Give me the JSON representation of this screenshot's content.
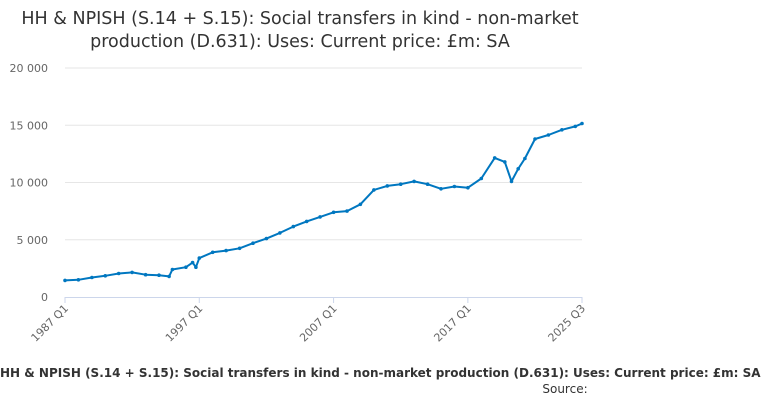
{
  "chart_data": {
    "type": "line",
    "title": "HH & NPISH (S.14 + S.15): Social transfers in kind - non-market production (D.631): Uses: Current price: £m: SA",
    "xlabel": "",
    "ylabel": "",
    "ylim": [
      0,
      20000
    ],
    "y_ticks": [
      "0",
      "5 000",
      "10 000",
      "15 000",
      "20 000"
    ],
    "y_tick_values": [
      0,
      5000,
      10000,
      15000,
      20000
    ],
    "x_ticks": [
      "1987 Q1",
      "1997 Q1",
      "2007 Q1",
      "2017 Q1",
      "2025 Q3"
    ],
    "x_range": [
      "1987 Q1",
      "2025 Q3"
    ],
    "grid": "horizontal",
    "legend": "bottom",
    "color": "#0077c0",
    "series": [
      {
        "name": "HH & NPISH (S.14 + S.15): Social transfers in kind - non-market production (D.631): Uses: Current price: £m: SA",
        "points": [
          [
            "1987 Q1",
            1450
          ],
          [
            "1988 Q1",
            1500
          ],
          [
            "1989 Q1",
            1700
          ],
          [
            "1990 Q1",
            1850
          ],
          [
            "1991 Q1",
            2050
          ],
          [
            "1992 Q1",
            2150
          ],
          [
            "1993 Q1",
            1950
          ],
          [
            "1994 Q1",
            1900
          ],
          [
            "1994 Q4",
            1800
          ],
          [
            "1995 Q1",
            2400
          ],
          [
            "1996 Q1",
            2600
          ],
          [
            "1996 Q3",
            3000
          ],
          [
            "1996 Q4",
            2600
          ],
          [
            "1997 Q1",
            3400
          ],
          [
            "1998 Q1",
            3900
          ],
          [
            "1999 Q1",
            4050
          ],
          [
            "2000 Q1",
            4250
          ],
          [
            "2001 Q1",
            4700
          ],
          [
            "2002 Q1",
            5100
          ],
          [
            "2003 Q1",
            5600
          ],
          [
            "2004 Q1",
            6150
          ],
          [
            "2005 Q1",
            6600
          ],
          [
            "2006 Q1",
            7000
          ],
          [
            "2007 Q1",
            7400
          ],
          [
            "2008 Q1",
            7500
          ],
          [
            "2009 Q1",
            8100
          ],
          [
            "2010 Q1",
            9350
          ],
          [
            "2011 Q1",
            9700
          ],
          [
            "2012 Q1",
            9850
          ],
          [
            "2013 Q1",
            10100
          ],
          [
            "2014 Q1",
            9850
          ],
          [
            "2015 Q1",
            9450
          ],
          [
            "2016 Q1",
            9650
          ],
          [
            "2017 Q1",
            9550
          ],
          [
            "2018 Q1",
            10350
          ],
          [
            "2019 Q1",
            12150
          ],
          [
            "2019 Q4",
            11800
          ],
          [
            "2020 Q2",
            10100
          ],
          [
            "2020 Q4",
            11200
          ],
          [
            "2021 Q2",
            12100
          ],
          [
            "2022 Q1",
            13800
          ],
          [
            "2023 Q1",
            14150
          ],
          [
            "2024 Q1",
            14600
          ],
          [
            "2025 Q1",
            14900
          ],
          [
            "2025 Q3",
            15150
          ]
        ]
      }
    ]
  },
  "footer": {
    "series_label": "HH & NPISH (S.14 + S.15): Social transfers in kind - non-market production (D.631): Uses: Current price: £m: SA",
    "source_label": "Source:"
  }
}
